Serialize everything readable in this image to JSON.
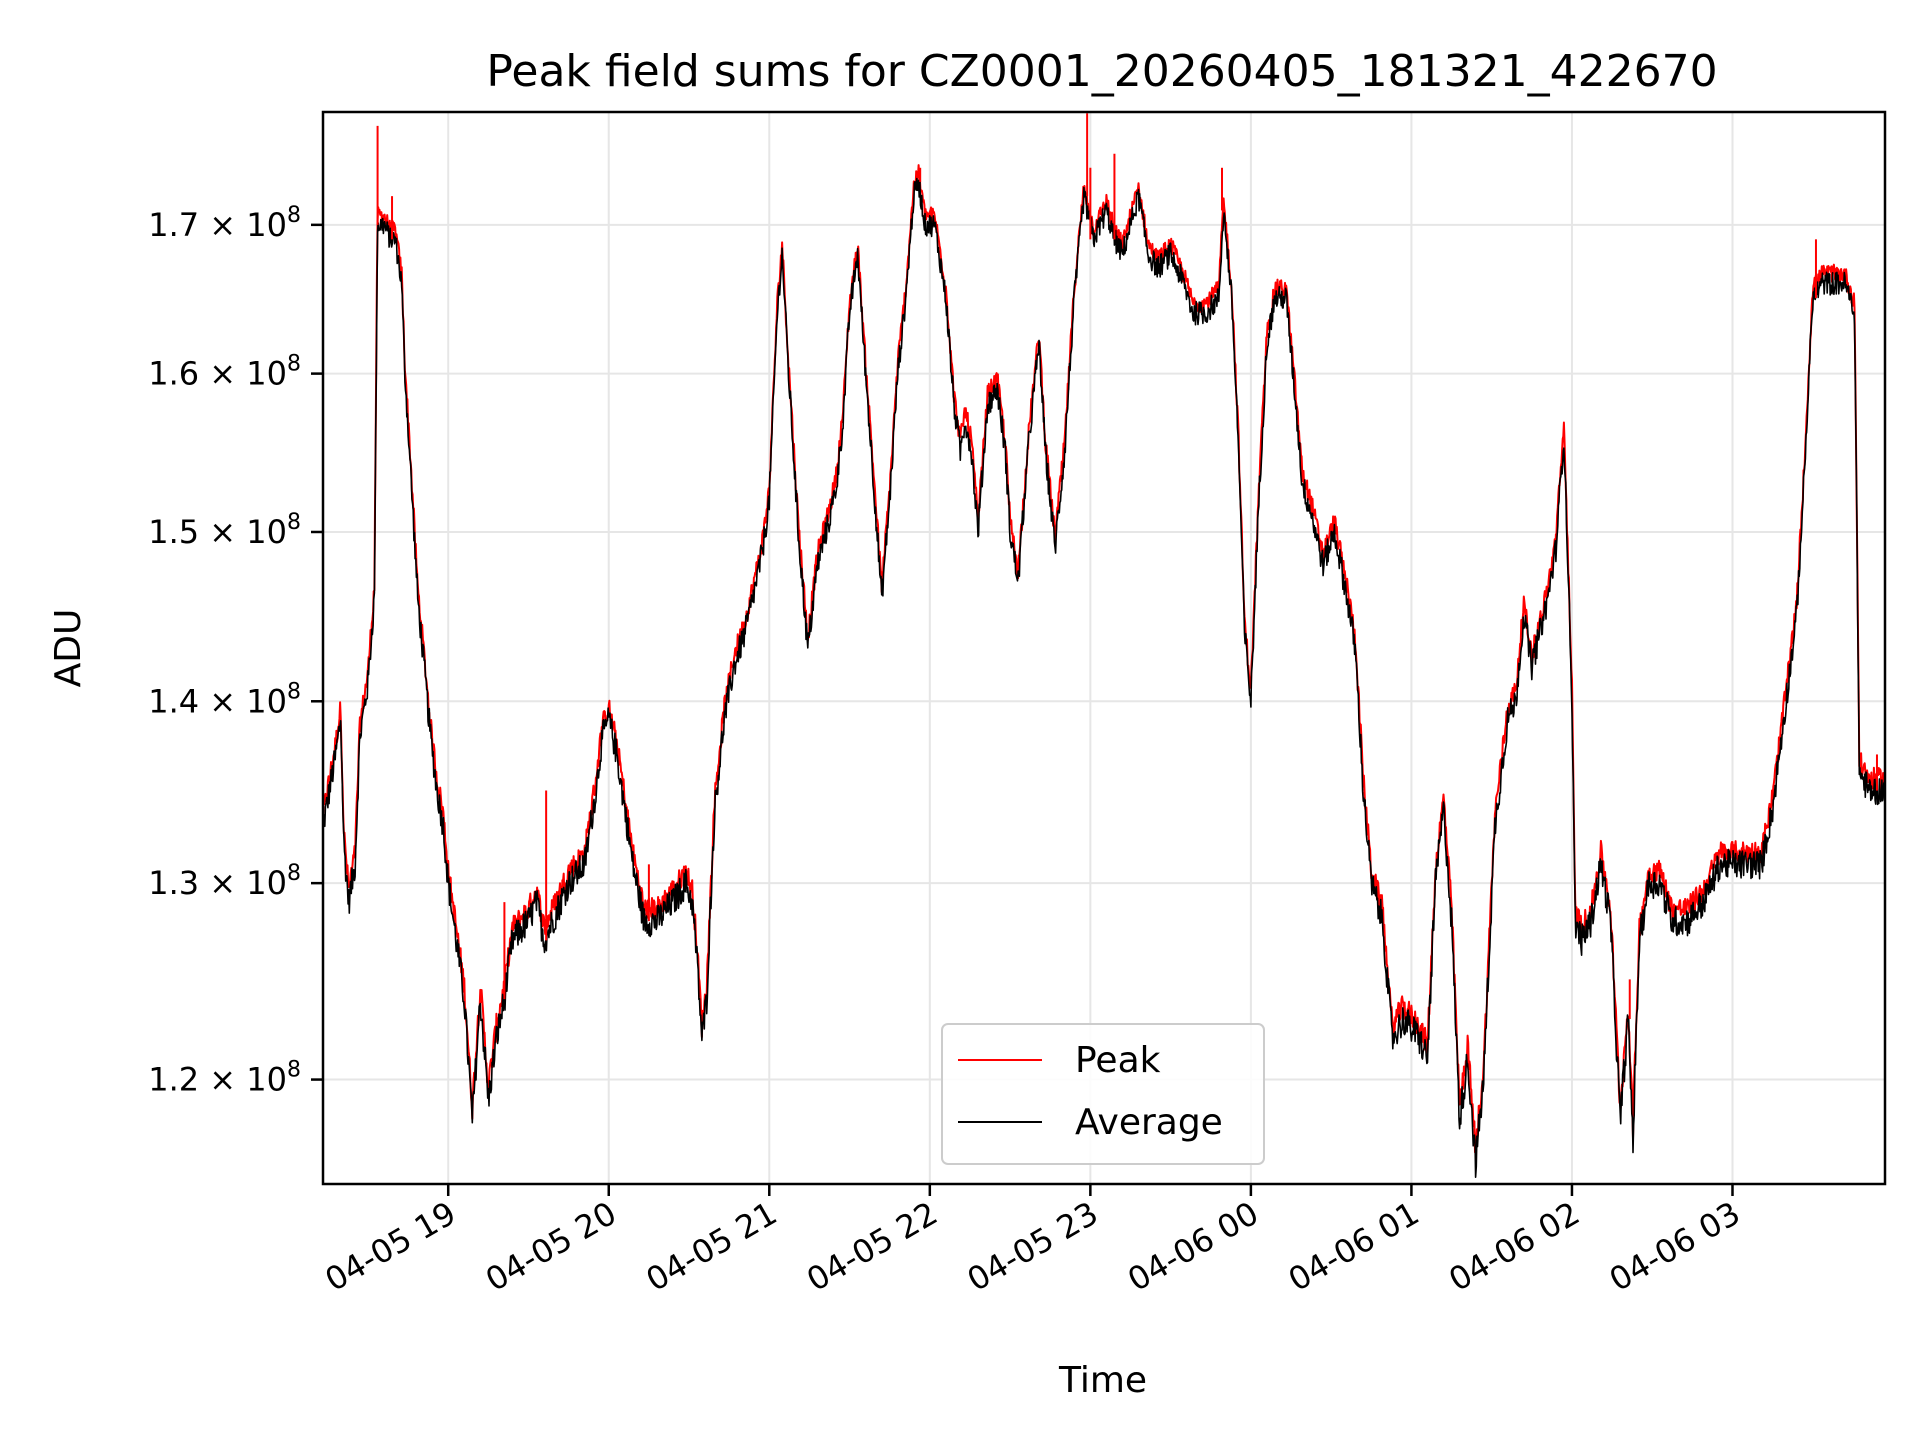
{
  "chart_data": {
    "type": "line",
    "title": "Peak field sums for CZ0001_20260405_181321_422670",
    "xlabel": "Time",
    "ylabel": "ADU",
    "yscale": "log",
    "grid": true,
    "legend_position": "bottom-center",
    "x_unit": "hours since 2026-04-05 18:00",
    "xlim": [
      18.22,
      27.95
    ],
    "ylim": [
      115000000.0,
      178000000.0
    ],
    "x_ticks": [
      {
        "x": 19,
        "label": "04-05 19"
      },
      {
        "x": 20,
        "label": "04-05 20"
      },
      {
        "x": 21,
        "label": "04-05 21"
      },
      {
        "x": 22,
        "label": "04-05 22"
      },
      {
        "x": 23,
        "label": "04-05 23"
      },
      {
        "x": 24,
        "label": "04-06 00"
      },
      {
        "x": 25,
        "label": "04-06 01"
      },
      {
        "x": 26,
        "label": "04-06 02"
      },
      {
        "x": 27,
        "label": "04-06 03"
      }
    ],
    "y_ticks": [
      {
        "y": 120000000.0,
        "mantissa": "1.2",
        "exp": "8"
      },
      {
        "y": 130000000.0,
        "mantissa": "1.3",
        "exp": "8"
      },
      {
        "y": 140000000.0,
        "mantissa": "1.4",
        "exp": "8"
      },
      {
        "y": 150000000.0,
        "mantissa": "1.5",
        "exp": "8"
      },
      {
        "y": 160000000.0,
        "mantissa": "1.6",
        "exp": "8"
      },
      {
        "y": 170000000.0,
        "mantissa": "1.7",
        "exp": "8"
      }
    ],
    "series": [
      {
        "name": "Peak",
        "color": "#ff0000"
      },
      {
        "name": "Average",
        "color": "#000000"
      }
    ],
    "average_keypoints": [
      [
        18.22,
        1.33
      ],
      [
        18.3,
        1.37
      ],
      [
        18.33,
        1.39
      ],
      [
        18.35,
        1.32
      ],
      [
        18.38,
        1.29
      ],
      [
        18.42,
        1.31
      ],
      [
        18.45,
        1.38
      ],
      [
        18.5,
        1.41
      ],
      [
        18.54,
        1.46
      ],
      [
        18.56,
        1.7
      ],
      [
        18.6,
        1.7
      ],
      [
        18.64,
        1.69
      ],
      [
        18.67,
        1.69
      ],
      [
        18.71,
        1.66
      ],
      [
        18.73,
        1.6
      ],
      [
        18.77,
        1.53
      ],
      [
        18.81,
        1.46
      ],
      [
        18.85,
        1.42
      ],
      [
        18.89,
        1.38
      ],
      [
        18.93,
        1.35
      ],
      [
        18.97,
        1.33
      ],
      [
        19.0,
        1.3
      ],
      [
        19.05,
        1.27
      ],
      [
        19.1,
        1.24
      ],
      [
        19.15,
        1.18
      ],
      [
        19.2,
        1.24
      ],
      [
        19.25,
        1.19
      ],
      [
        19.3,
        1.22
      ],
      [
        19.35,
        1.24
      ],
      [
        19.4,
        1.27
      ],
      [
        19.5,
        1.28
      ],
      [
        19.55,
        1.29
      ],
      [
        19.6,
        1.27
      ],
      [
        19.65,
        1.28
      ],
      [
        19.75,
        1.3
      ],
      [
        19.85,
        1.31
      ],
      [
        19.92,
        1.35
      ],
      [
        19.96,
        1.38
      ],
      [
        20.0,
        1.39
      ],
      [
        20.05,
        1.37
      ],
      [
        20.1,
        1.34
      ],
      [
        20.15,
        1.31
      ],
      [
        20.22,
        1.28
      ],
      [
        20.3,
        1.28
      ],
      [
        20.4,
        1.29
      ],
      [
        20.48,
        1.3
      ],
      [
        20.52,
        1.29
      ],
      [
        20.55,
        1.26
      ],
      [
        20.58,
        1.22
      ],
      [
        20.61,
        1.24
      ],
      [
        20.66,
        1.34
      ],
      [
        20.72,
        1.39
      ],
      [
        20.78,
        1.42
      ],
      [
        20.85,
        1.44
      ],
      [
        20.92,
        1.47
      ],
      [
        20.96,
        1.49
      ],
      [
        21.0,
        1.52
      ],
      [
        21.05,
        1.64
      ],
      [
        21.08,
        1.68
      ],
      [
        21.12,
        1.6
      ],
      [
        21.18,
        1.5
      ],
      [
        21.24,
        1.43
      ],
      [
        21.3,
        1.48
      ],
      [
        21.38,
        1.51
      ],
      [
        21.42,
        1.53
      ],
      [
        21.46,
        1.57
      ],
      [
        21.5,
        1.64
      ],
      [
        21.55,
        1.68
      ],
      [
        21.6,
        1.6
      ],
      [
        21.65,
        1.53
      ],
      [
        21.7,
        1.46
      ],
      [
        21.75,
        1.52
      ],
      [
        21.8,
        1.6
      ],
      [
        21.85,
        1.65
      ],
      [
        21.9,
        1.72
      ],
      [
        21.93,
        1.73
      ],
      [
        21.97,
        1.7
      ],
      [
        22.03,
        1.7
      ],
      [
        22.1,
        1.65
      ],
      [
        22.15,
        1.58
      ],
      [
        22.19,
        1.55
      ],
      [
        22.22,
        1.57
      ],
      [
        22.26,
        1.55
      ],
      [
        22.3,
        1.5
      ],
      [
        22.36,
        1.58
      ],
      [
        22.42,
        1.59
      ],
      [
        22.47,
        1.55
      ],
      [
        22.5,
        1.5
      ],
      [
        22.55,
        1.47
      ],
      [
        22.62,
        1.56
      ],
      [
        22.68,
        1.62
      ],
      [
        22.72,
        1.55
      ],
      [
        22.78,
        1.49
      ],
      [
        22.84,
        1.55
      ],
      [
        22.9,
        1.65
      ],
      [
        22.96,
        1.72
      ],
      [
        23.02,
        1.69
      ],
      [
        23.1,
        1.71
      ],
      [
        23.15,
        1.69
      ],
      [
        23.2,
        1.68
      ],
      [
        23.3,
        1.72
      ],
      [
        23.36,
        1.68
      ],
      [
        23.42,
        1.67
      ],
      [
        23.5,
        1.68
      ],
      [
        23.58,
        1.66
      ],
      [
        23.64,
        1.64
      ],
      [
        23.72,
        1.64
      ],
      [
        23.8,
        1.65
      ],
      [
        23.83,
        1.71
      ],
      [
        23.88,
        1.65
      ],
      [
        23.92,
        1.56
      ],
      [
        23.96,
        1.44
      ],
      [
        24.0,
        1.4
      ],
      [
        24.05,
        1.52
      ],
      [
        24.1,
        1.62
      ],
      [
        24.15,
        1.65
      ],
      [
        24.22,
        1.65
      ],
      [
        24.28,
        1.58
      ],
      [
        24.32,
        1.53
      ],
      [
        24.38,
        1.51
      ],
      [
        24.45,
        1.48
      ],
      [
        24.52,
        1.5
      ],
      [
        24.6,
        1.46
      ],
      [
        24.65,
        1.43
      ],
      [
        24.7,
        1.35
      ],
      [
        24.75,
        1.3
      ],
      [
        24.82,
        1.28
      ],
      [
        24.88,
        1.22
      ],
      [
        24.95,
        1.23
      ],
      [
        25.05,
        1.22
      ],
      [
        25.1,
        1.21
      ],
      [
        25.15,
        1.3
      ],
      [
        25.2,
        1.34
      ],
      [
        25.25,
        1.28
      ],
      [
        25.3,
        1.18
      ],
      [
        25.35,
        1.21
      ],
      [
        25.4,
        1.16
      ],
      [
        25.45,
        1.2
      ],
      [
        25.52,
        1.33
      ],
      [
        25.6,
        1.39
      ],
      [
        25.65,
        1.4
      ],
      [
        25.7,
        1.45
      ],
      [
        25.75,
        1.42
      ],
      [
        25.8,
        1.44
      ],
      [
        25.85,
        1.46
      ],
      [
        25.9,
        1.49
      ],
      [
        25.95,
        1.56
      ],
      [
        26.0,
        1.4
      ],
      [
        26.02,
        1.28
      ],
      [
        26.06,
        1.27
      ],
      [
        26.12,
        1.28
      ],
      [
        26.18,
        1.31
      ],
      [
        26.24,
        1.28
      ],
      [
        26.3,
        1.18
      ],
      [
        26.35,
        1.23
      ],
      [
        26.38,
        1.17
      ],
      [
        26.42,
        1.27
      ],
      [
        26.48,
        1.3
      ],
      [
        26.55,
        1.3
      ],
      [
        26.62,
        1.28
      ],
      [
        26.72,
        1.28
      ],
      [
        26.82,
        1.29
      ],
      [
        26.92,
        1.31
      ],
      [
        27.0,
        1.31
      ],
      [
        27.1,
        1.31
      ],
      [
        27.18,
        1.31
      ],
      [
        27.25,
        1.34
      ],
      [
        27.32,
        1.39
      ],
      [
        27.4,
        1.45
      ],
      [
        27.45,
        1.54
      ],
      [
        27.5,
        1.65
      ],
      [
        27.56,
        1.66
      ],
      [
        27.62,
        1.66
      ],
      [
        27.7,
        1.66
      ],
      [
        27.76,
        1.64
      ],
      [
        27.79,
        1.36
      ],
      [
        27.85,
        1.35
      ],
      [
        27.95,
        1.35
      ]
    ],
    "peak_spikes": [
      [
        18.56,
        1.77
      ],
      [
        18.65,
        1.72
      ],
      [
        19.35,
        1.29
      ],
      [
        19.61,
        1.35
      ],
      [
        20.25,
        1.31
      ],
      [
        21.94,
        1.74
      ],
      [
        22.98,
        1.78
      ],
      [
        23.0,
        1.74
      ],
      [
        23.15,
        1.75
      ],
      [
        23.82,
        1.74
      ],
      [
        25.96,
        1.56
      ],
      [
        26.36,
        1.25
      ],
      [
        27.52,
        1.69
      ],
      [
        27.9,
        1.37
      ]
    ]
  }
}
